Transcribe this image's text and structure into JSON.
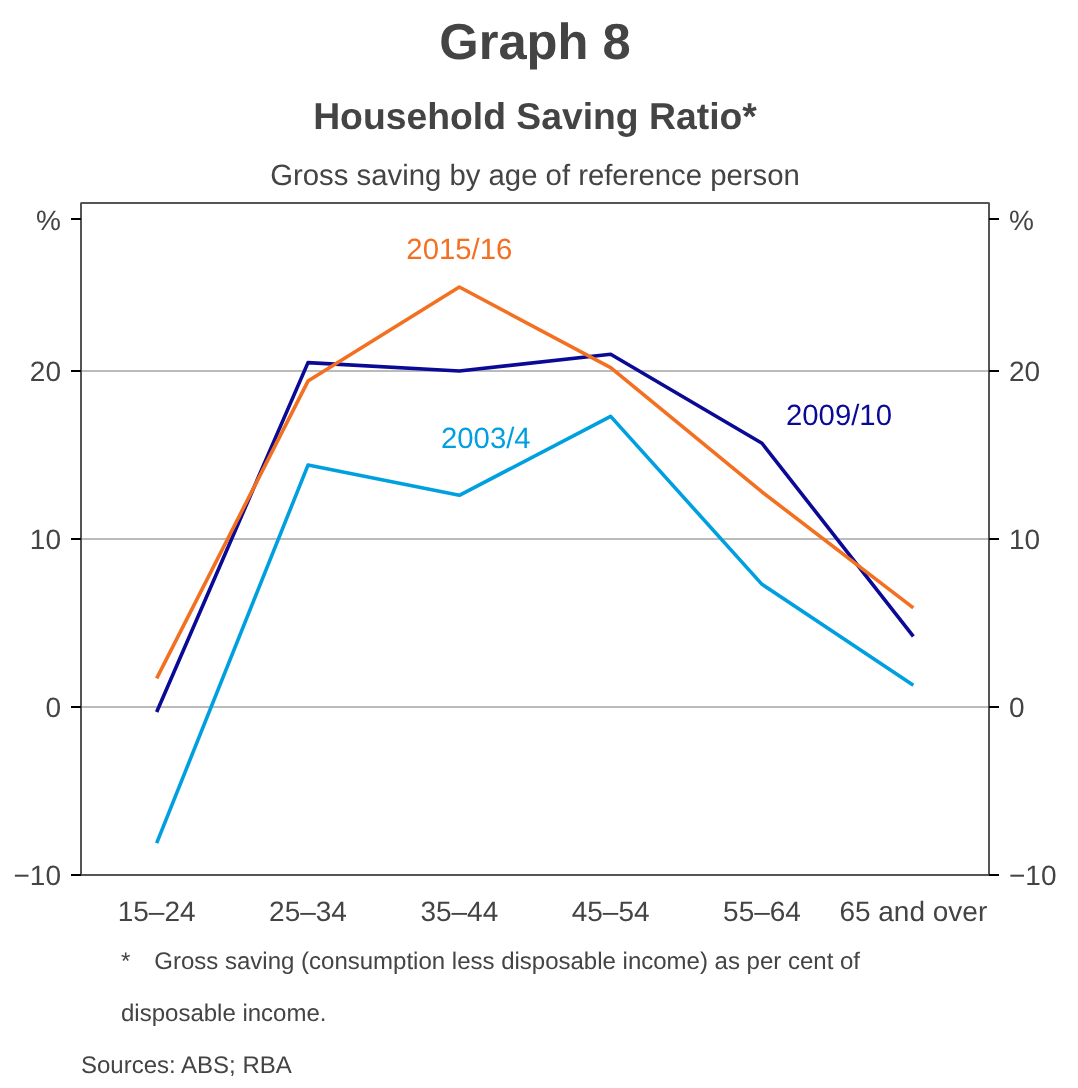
{
  "chart_data": {
    "type": "line",
    "title": "Graph 8",
    "subtitle": "Household Saving Ratio*",
    "annotations": [
      "Gross saving by age of reference person",
      "* Gross saving (consumption less disposable income) as per cent of disposable income.",
      "Sources: ABS; RBA"
    ],
    "categories": [
      "15–24",
      "25–34",
      "35–44",
      "45–54",
      "55–64",
      "65 and over"
    ],
    "series": [
      {
        "name": "2003/4",
        "color": "#00a0e0",
        "values": [
          -8.1,
          14.4,
          12.6,
          17.3,
          7.3,
          1.3
        ]
      },
      {
        "name": "2009/10",
        "color": "#0a0a96",
        "values": [
          -0.3,
          20.5,
          20.0,
          21.0,
          15.7,
          4.2
        ]
      },
      {
        "name": "2015/16",
        "color": "#f37021",
        "values": [
          1.7,
          19.4,
          25.0,
          20.2,
          12.8,
          5.9
        ]
      }
    ],
    "ylabel": "%",
    "y2label": "%",
    "ylim": [
      -10,
      30
    ],
    "yticks": [
      -10,
      0,
      10,
      20
    ],
    "y2lim": [
      -10,
      30
    ],
    "y2ticks": [
      -10,
      0,
      10,
      20
    ],
    "grid": "y",
    "legend": false,
    "marker": "none",
    "line_style": "solid"
  }
}
